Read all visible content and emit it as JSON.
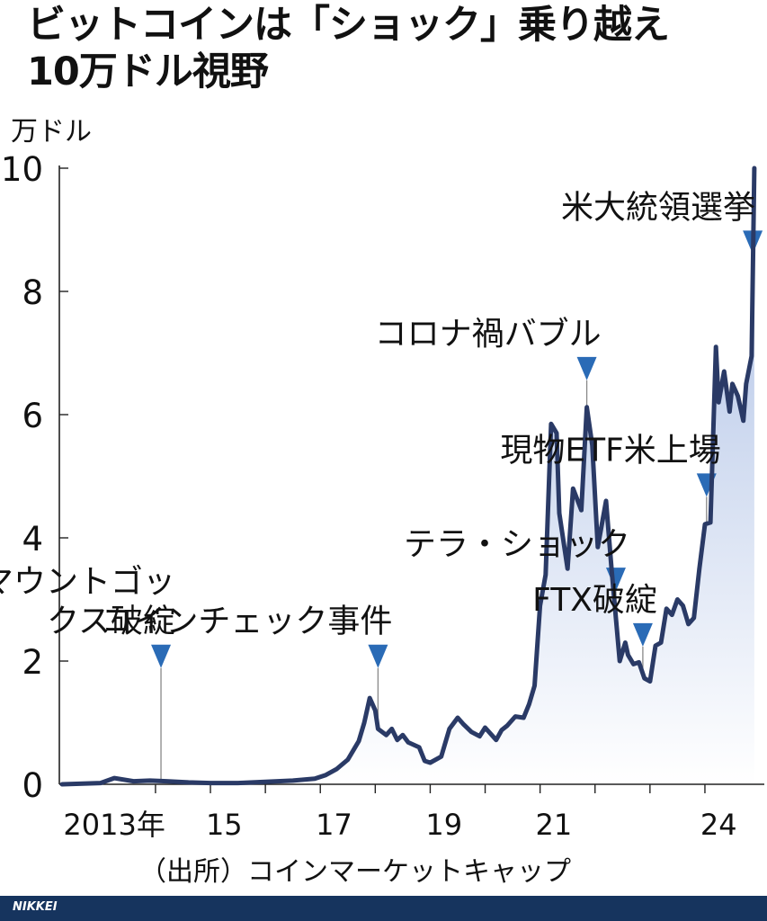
{
  "headline": {
    "line1": "ビットコインは「ショック」乗り越え",
    "line2": "10万ドル視野"
  },
  "chart_data": {
    "type": "area",
    "unit_label": "万ドル",
    "ylim": [
      0,
      10
    ],
    "yticks": [
      0,
      2,
      4,
      6,
      8,
      10
    ],
    "x_tick_labels": [
      "2013年",
      "15",
      "17",
      "19",
      "21",
      "24"
    ],
    "x_tick_label_years": [
      2013.25,
      2015.25,
      2017.25,
      2019.25,
      2021.25,
      2024.25
    ],
    "x_minor_ticks": [
      2014,
      2015,
      2016,
      2017,
      2018,
      2019,
      2020,
      2021,
      2022,
      2023,
      2024
    ],
    "xlim": [
      2012.25,
      2024.95
    ],
    "line_color": "#2a3a66",
    "fill_color_top": "#a9bde4",
    "fill_color_bottom": "#ffffff",
    "marker_color": "#2a6bb6",
    "series": [
      {
        "x": [
          2012.3,
          2013.0,
          2013.25,
          2013.6,
          2013.9,
          2014.2,
          2014.6,
          2015.0,
          2015.5,
          2016.0,
          2016.5,
          2016.9,
          2017.1,
          2017.3,
          2017.5,
          2017.6,
          2017.7,
          2017.8,
          2017.9,
          2018.0,
          2018.05,
          2018.2,
          2018.3,
          2018.4,
          2018.5,
          2018.6,
          2018.8,
          2018.9,
          2019.0,
          2019.2,
          2019.35,
          2019.5,
          2019.6,
          2019.75,
          2019.9,
          2020.0,
          2020.2,
          2020.3,
          2020.4,
          2020.55,
          2020.7,
          2020.8,
          2020.9,
          2021.0,
          2021.1,
          2021.2,
          2021.3,
          2021.35,
          2021.5,
          2021.6,
          2021.75,
          2021.85,
          2021.95,
          2022.05,
          2022.2,
          2022.3,
          2022.45,
          2022.55,
          2022.6,
          2022.7,
          2022.8,
          2022.9,
          2023.0,
          2023.1,
          2023.2,
          2023.3,
          2023.4,
          2023.5,
          2023.6,
          2023.7,
          2023.8,
          2023.9,
          2024.0,
          2024.1,
          2024.2,
          2024.25,
          2024.35,
          2024.45,
          2024.5,
          2024.6,
          2024.7,
          2024.75,
          2024.85,
          2024.9
        ],
        "y": [
          0.0,
          0.02,
          0.1,
          0.05,
          0.06,
          0.05,
          0.03,
          0.02,
          0.02,
          0.04,
          0.06,
          0.09,
          0.15,
          0.25,
          0.4,
          0.55,
          0.7,
          1.0,
          1.4,
          1.2,
          0.9,
          0.8,
          0.9,
          0.72,
          0.8,
          0.68,
          0.6,
          0.38,
          0.35,
          0.45,
          0.9,
          1.08,
          0.98,
          0.85,
          0.78,
          0.92,
          0.72,
          0.88,
          0.95,
          1.1,
          1.08,
          1.3,
          1.6,
          2.9,
          3.4,
          5.85,
          5.7,
          4.4,
          3.5,
          4.8,
          4.45,
          6.12,
          5.5,
          3.85,
          4.6,
          3.5,
          2.0,
          2.3,
          2.1,
          1.95,
          1.98,
          1.72,
          1.67,
          2.25,
          2.3,
          2.85,
          2.75,
          3.0,
          2.9,
          2.6,
          2.7,
          3.5,
          4.22,
          4.25,
          7.1,
          6.2,
          6.7,
          6.05,
          6.5,
          6.3,
          5.9,
          6.5,
          6.95,
          10.0
        ]
      }
    ],
    "events": [
      {
        "label": [
          "マウントゴッ",
          "クス破綻"
        ],
        "year": 2014.1
      },
      {
        "label": [
          "コインチェック事件"
        ],
        "year": 2018.05
      },
      {
        "label": [
          "コロナ禍バブル"
        ],
        "year": 2021.85
      },
      {
        "label": [
          "テラ・ショック"
        ],
        "year": 2022.38
      },
      {
        "label": [
          "FTX破綻"
        ],
        "year": 2022.87
      },
      {
        "label": [
          "現物ETF米上場"
        ],
        "year": 2024.03
      },
      {
        "label": [
          "米大統領選挙"
        ],
        "year": 2024.87
      }
    ]
  },
  "source": "（出所）コインマーケットキャップ",
  "footer": {
    "brand": "NIKKEI"
  }
}
